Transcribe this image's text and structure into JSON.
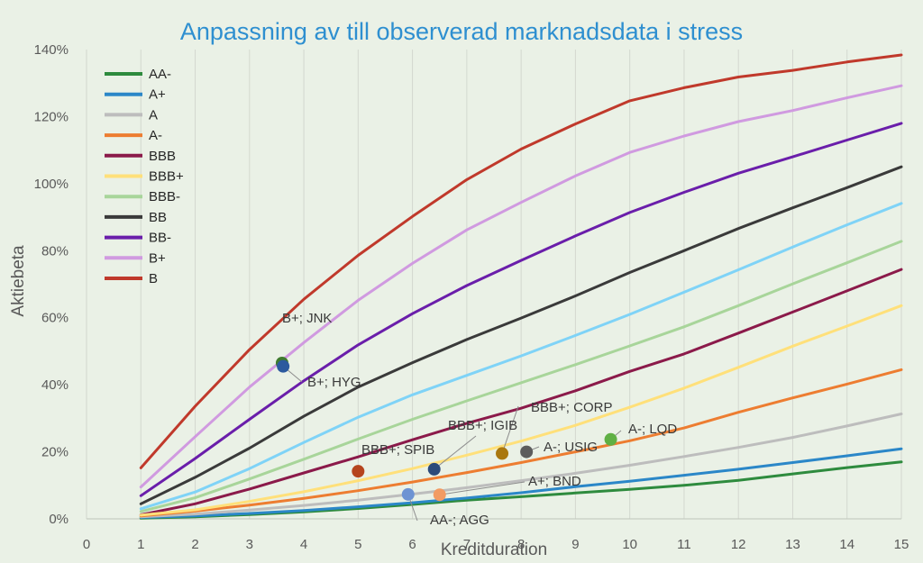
{
  "chart_data": {
    "type": "line",
    "title": "Anpassning av till observerad marknadsdata i stress",
    "xlabel": "Kreditduration",
    "ylabel": "Aktiebeta",
    "xlim": [
      0,
      15
    ],
    "ylim": [
      0,
      1.4
    ],
    "x_ticks": [
      "0",
      "1",
      "2",
      "3",
      "4",
      "5",
      "6",
      "7",
      "8",
      "9",
      "10",
      "11",
      "12",
      "13",
      "14",
      "15"
    ],
    "y_ticks": [
      "0%",
      "20%",
      "40%",
      "60%",
      "80%",
      "100%",
      "120%",
      "140%"
    ],
    "grid": "vertical",
    "legend_position": "top-left",
    "x": [
      1,
      2,
      3,
      4,
      5,
      6,
      7,
      8,
      9,
      10,
      11,
      12,
      13,
      14,
      15
    ],
    "series": [
      {
        "name": "AA-",
        "color": "#2e8b3e",
        "values": [
          0.002,
          0.006,
          0.013,
          0.021,
          0.031,
          0.043,
          0.056,
          0.066,
          0.077,
          0.088,
          0.1,
          0.115,
          0.134,
          0.153,
          0.17
        ]
      },
      {
        "name": "A+",
        "color": "#2b87c8",
        "values": [
          0.004,
          0.009,
          0.016,
          0.025,
          0.036,
          0.048,
          0.062,
          0.078,
          0.096,
          0.112,
          0.13,
          0.148,
          0.168,
          0.188,
          0.209
        ]
      },
      {
        "name": "A",
        "color": "#bdbdbd",
        "values": [
          0.006,
          0.014,
          0.026,
          0.04,
          0.056,
          0.074,
          0.093,
          0.114,
          0.136,
          0.16,
          0.186,
          0.213,
          0.243,
          0.277,
          0.313
        ]
      },
      {
        "name": "A-",
        "color": "#ed7d31",
        "values": [
          0.009,
          0.023,
          0.041,
          0.061,
          0.084,
          0.11,
          0.138,
          0.168,
          0.2,
          0.233,
          0.271,
          0.318,
          0.361,
          0.402,
          0.445
        ]
      },
      {
        "name": "BBB",
        "color": "#8b1a4a",
        "values": [
          0.012,
          0.045,
          0.089,
          0.137,
          0.185,
          0.236,
          0.285,
          0.33,
          0.382,
          0.44,
          0.492,
          0.554,
          0.617,
          0.68,
          0.744
        ]
      },
      {
        "name": "BBB+",
        "color": "#ffe07a",
        "values": [
          0.011,
          0.027,
          0.052,
          0.081,
          0.114,
          0.15,
          0.19,
          0.232,
          0.279,
          0.333,
          0.39,
          0.452,
          0.515,
          0.575,
          0.636
        ]
      },
      {
        "name": "BBB-",
        "color": "#a8d59a",
        "values": [
          0.022,
          0.063,
          0.119,
          0.178,
          0.238,
          0.297,
          0.352,
          0.406,
          0.46,
          0.516,
          0.573,
          0.636,
          0.701,
          0.764,
          0.828
        ]
      },
      {
        "name": "BB",
        "color": "#3a3a3a",
        "values": [
          0.045,
          0.124,
          0.211,
          0.306,
          0.393,
          0.466,
          0.535,
          0.599,
          0.665,
          0.735,
          0.8,
          0.866,
          0.928,
          0.988,
          1.05
        ]
      },
      {
        "name": "BB-",
        "color": "#6a1eaa",
        "values": [
          0.069,
          0.18,
          0.297,
          0.412,
          0.519,
          0.612,
          0.696,
          0.771,
          0.844,
          0.914,
          0.974,
          1.031,
          1.08,
          1.13,
          1.18
        ]
      },
      {
        "name": "B+",
        "color": "#d09ae0",
        "values": [
          0.095,
          0.245,
          0.393,
          0.526,
          0.652,
          0.762,
          0.862,
          0.944,
          1.023,
          1.093,
          1.142,
          1.185,
          1.218,
          1.256,
          1.292
        ]
      },
      {
        "name": "B",
        "color": "#c0392b",
        "values": [
          0.152,
          0.336,
          0.505,
          0.655,
          0.786,
          0.902,
          1.012,
          1.103,
          1.178,
          1.247,
          1.286,
          1.318,
          1.338,
          1.363,
          1.384
        ]
      },
      {
        "name": "",
        "color": "#7fd3f7",
        "values": [
          0.03,
          0.08,
          0.15,
          0.228,
          0.303,
          0.37,
          0.428,
          0.486,
          0.547,
          0.61,
          0.676,
          0.743,
          0.811,
          0.877,
          0.941
        ]
      }
    ],
    "points": [
      {
        "label": "B+; JNK",
        "x": 3.6,
        "y": 0.465,
        "color": "#3f7a2e"
      },
      {
        "label": "B+; HYG",
        "x": 3.62,
        "y": 0.455,
        "color": "#2c5a9e"
      },
      {
        "label": "BBB+; SPIB",
        "x": 5.0,
        "y": 0.142,
        "color": "#b5441d"
      },
      {
        "label": "BBB+; IGIB",
        "x": 6.4,
        "y": 0.148,
        "color": "#2c4a7a"
      },
      {
        "label": "BBB+; CORP",
        "x": 7.65,
        "y": 0.195,
        "color": "#a9770f"
      },
      {
        "label": "A-; USIG",
        "x": 8.1,
        "y": 0.2,
        "color": "#5c5c5c"
      },
      {
        "label": "A-; LQD",
        "x": 9.65,
        "y": 0.237,
        "color": "#5fb044"
      },
      {
        "label": "A+; BND",
        "x": 6.5,
        "y": 0.072,
        "color": "#f29b63"
      },
      {
        "label": "AA-; AGG",
        "x": 5.92,
        "y": 0.073,
        "color": "#6d93d3"
      }
    ]
  }
}
